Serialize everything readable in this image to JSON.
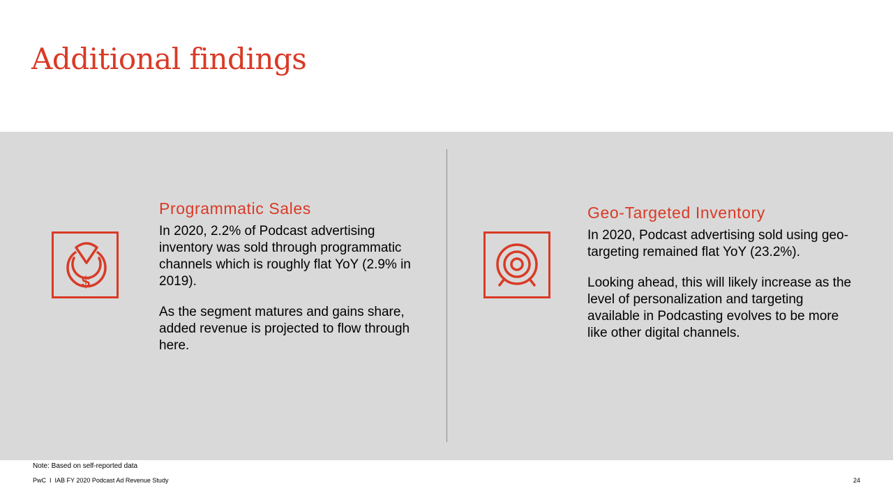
{
  "title": "Additional findings",
  "accent_color": "#d93a26",
  "panel_color": "#d9d9d9",
  "left": {
    "icon": "programmatic-money-icon",
    "heading": "Programmatic Sales",
    "paragraphs": [
      "In 2020, 2.2% of Podcast advertising inventory was sold through programmatic channels which is roughly flat YoY (2.9% in 2019).",
      "As the segment matures and gains share, added revenue is projected to flow through here."
    ]
  },
  "right": {
    "icon": "target-icon",
    "heading": "Geo-Targeted Inventory",
    "paragraphs": [
      "In 2020, Podcast advertising sold using geo-targeting remained flat YoY (23.2%).",
      "Looking ahead, this will likely increase as the level of personalization and targeting available in Podcasting evolves to be more like other digital channels."
    ]
  },
  "note": "Note: Based on self-reported data",
  "footer": "PwC  I  IAB FY 2020 Podcast Ad Revenue Study",
  "page_number": "24"
}
